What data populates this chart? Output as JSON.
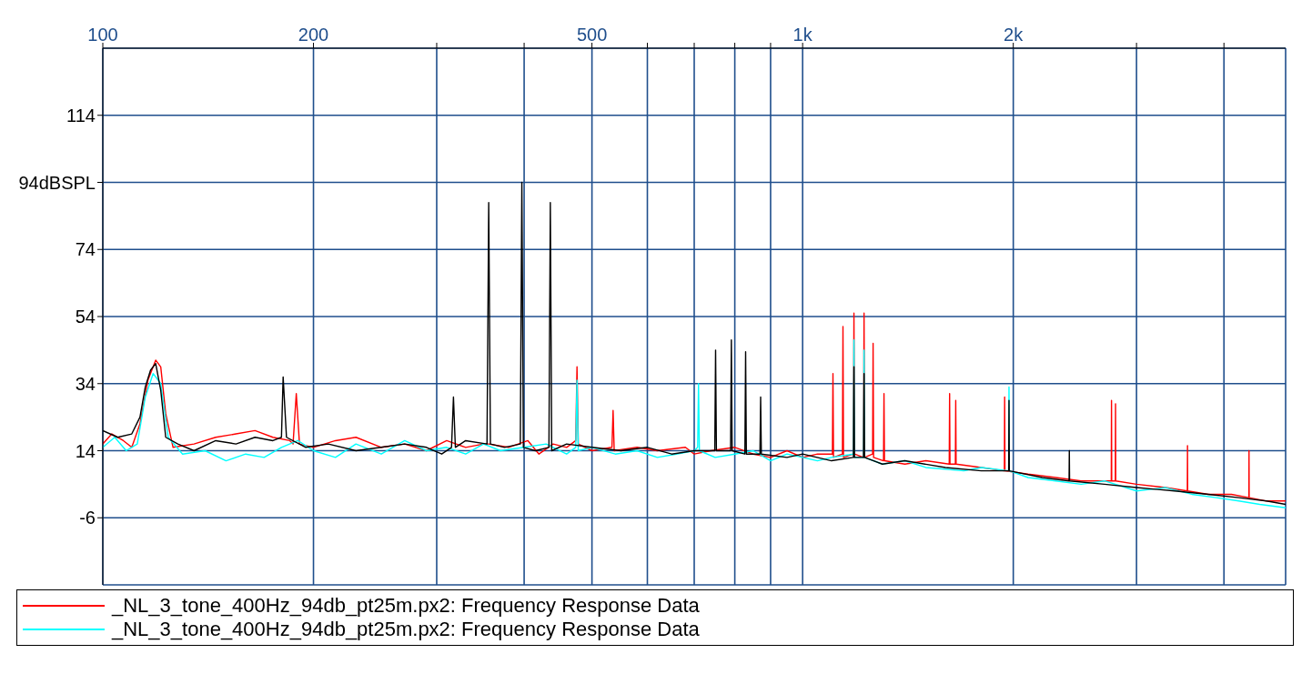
{
  "chart_data": {
    "type": "line",
    "log": "x",
    "grid": true,
    "legend": "bottom",
    "line_style": "solid",
    "xlim": [
      100,
      4900
    ],
    "ylim": [
      -26,
      134
    ],
    "xticks": [
      100,
      200,
      {
        "value": 300,
        "label": null
      },
      {
        "value": 400,
        "label": null
      },
      500,
      {
        "value": 600,
        "label": null
      },
      {
        "value": 700,
        "label": null
      },
      {
        "value": 800,
        "label": null
      },
      {
        "value": 900,
        "label": null
      },
      {
        "value": 1000,
        "label": "1k"
      },
      {
        "value": 2000,
        "label": "2k"
      },
      {
        "value": 3000,
        "label": null
      },
      {
        "value": 4000,
        "label": null
      }
    ],
    "yticks": [
      -6,
      14,
      34,
      54,
      74,
      {
        "value": 94,
        "label": "94dBSPL"
      },
      114
    ],
    "series": [
      {
        "name": "_NL_3_tone_400Hz_94db_pt25m.px2:  Frequency Response Data",
        "color": "#ff0000",
        "x": [
          100,
          103,
          107,
          110,
          113,
          116,
          119,
          121,
          123,
          126,
          135,
          145,
          155,
          165,
          175,
          185,
          187,
          189,
          191,
          200,
          215,
          230,
          250,
          270,
          290,
          310,
          330,
          350,
          356,
          380,
          405,
          420,
          440,
          460,
          474,
          476,
          478,
          500,
          534,
          536,
          538,
          580,
          620,
          680,
          700,
          740,
          800,
          850,
          900,
          950,
          1000,
          1050,
          1103,
          1105,
          1107,
          1140,
          1142,
          1144,
          1182,
          1184,
          1186,
          1222,
          1224,
          1226,
          1259,
          1261,
          1263,
          1305,
          1307,
          1309,
          1400,
          1500,
          1620,
          1622,
          1624,
          1653,
          1655,
          1657,
          1800,
          1942,
          1944,
          1946,
          2100,
          2300,
          2500,
          2761,
          2763,
          2765,
          2798,
          2800,
          2802,
          3000,
          3300,
          3546,
          3548,
          3550,
          3800,
          4100,
          4342,
          4344,
          4346,
          4600,
          4900
        ],
        "values": [
          16,
          19,
          17,
          15,
          22,
          35,
          41,
          39,
          25,
          15,
          16,
          18,
          19,
          20,
          18,
          17,
          16,
          31,
          16,
          15,
          17,
          18,
          15,
          16,
          14,
          17,
          15,
          16,
          16,
          15,
          17,
          13,
          16,
          15,
          17,
          39,
          16,
          14,
          15,
          26,
          14,
          15,
          14,
          15,
          13,
          14,
          15,
          13,
          12,
          14,
          12,
          13,
          13,
          37,
          12,
          13,
          51,
          12,
          13,
          55,
          13,
          12,
          55,
          12,
          13,
          46,
          12,
          11,
          31,
          11,
          10,
          11,
          10,
          31,
          10,
          10,
          29,
          10,
          9,
          8,
          30,
          8,
          7,
          6,
          5,
          5,
          29,
          5,
          5,
          28,
          5,
          4,
          3,
          2,
          15.5,
          2,
          1,
          1,
          0,
          14,
          0,
          -1,
          -1
        ]
      },
      {
        "name": "_NL_3_tone_400Hz_94db_pt25m.px2:  Frequency Response Data",
        "color": "#00ffff",
        "x": [
          100,
          104,
          108,
          112,
          115,
          118,
          121,
          124,
          130,
          140,
          150,
          160,
          170,
          180,
          190,
          200,
          215,
          230,
          250,
          270,
          290,
          310,
          330,
          350,
          370,
          400,
          430,
          460,
          474,
          476,
          478,
          500,
          540,
          580,
          620,
          660,
          700,
          708,
          710,
          712,
          750,
          800,
          850,
          900,
          950,
          1000,
          1050,
          1100,
          1182,
          1184,
          1186,
          1222,
          1224,
          1226,
          1300,
          1400,
          1500,
          1700,
          1800,
          1970,
          1972,
          1974,
          2100,
          2300,
          2500,
          2700,
          3000,
          3300,
          3600,
          3900,
          4200,
          4500,
          4900
        ],
        "values": [
          15,
          18,
          14,
          16,
          30,
          37,
          34,
          18,
          13,
          14,
          11,
          13,
          12,
          15,
          17,
          14,
          12,
          16,
          13,
          17,
          14,
          15,
          13,
          16,
          14,
          15,
          16,
          13,
          15,
          35,
          14,
          15,
          13,
          14,
          12,
          13,
          14,
          15,
          34,
          14,
          12,
          13,
          14,
          11,
          13,
          12,
          11,
          12,
          13,
          47,
          12,
          12,
          44,
          12,
          10,
          11,
          9,
          8,
          9,
          8,
          33,
          8,
          6,
          5,
          4,
          5,
          2,
          3,
          1,
          0,
          -1,
          -2,
          -3
        ]
      },
      {
        "color": "#000000",
        "x": [
          100,
          105,
          110,
          113,
          115,
          117,
          119,
          121,
          123,
          128,
          135,
          145,
          155,
          165,
          175,
          180,
          181,
          183,
          195,
          210,
          230,
          250,
          270,
          290,
          305,
          315,
          317,
          319,
          330,
          354,
          356,
          358,
          375,
          395,
          397,
          399,
          415,
          434,
          436,
          438,
          460,
          500,
          550,
          600,
          650,
          700,
          749,
          751,
          753,
          789,
          791,
          793,
          827,
          829,
          831,
          869,
          871,
          873,
          950,
          1000,
          1100,
          1182,
          1184,
          1186,
          1222,
          1224,
          1226,
          1300,
          1400,
          1600,
          1800,
          1970,
          1972,
          1974,
          2200,
          2403,
          2405,
          2407,
          2700,
          3000,
          3400,
          3800,
          4200,
          4600,
          4900
        ],
        "values": [
          20,
          18,
          19,
          24,
          33,
          38,
          40,
          32,
          18,
          16,
          14,
          17,
          16,
          18,
          17,
          18,
          36,
          18,
          15,
          16,
          14,
          15,
          16,
          15,
          13,
          15,
          30,
          15,
          17,
          16,
          88,
          16,
          15,
          16,
          94,
          15,
          14,
          15,
          88,
          14,
          16,
          15,
          14,
          15,
          13,
          14,
          14,
          44,
          14,
          14,
          47,
          14,
          13,
          43.5,
          13,
          13,
          30,
          13,
          12,
          13,
          11,
          12,
          39,
          12,
          12,
          37,
          12,
          10,
          11,
          9,
          8,
          8,
          29,
          8,
          6,
          5,
          14,
          5,
          4,
          3,
          2,
          1,
          0,
          -1,
          -2
        ]
      }
    ]
  }
}
